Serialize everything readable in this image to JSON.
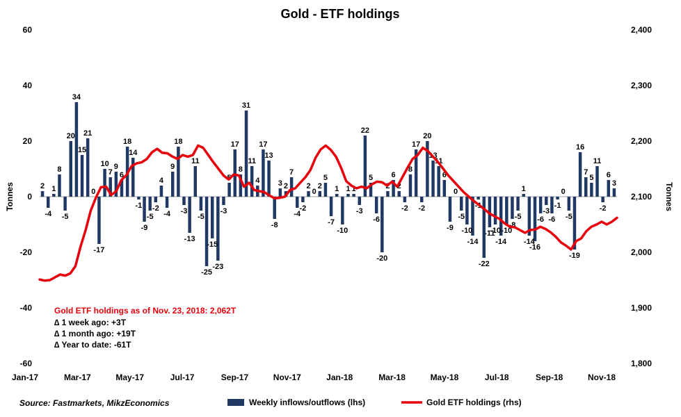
{
  "chart_data": {
    "type": "bar+line",
    "title": "Gold - ETF holdings",
    "ylabel_left": "Tonnes",
    "ylabel_right": "Tonnes",
    "ylim_left": [
      -60,
      60
    ],
    "ylim_right": [
      1800,
      2400
    ],
    "yticks_left": [
      "60",
      "40",
      "20",
      "0",
      "-20",
      "-40",
      "-60"
    ],
    "yticks_right": [
      "2,400",
      "2,300",
      "2,200",
      "2,100",
      "2,000",
      "1,900",
      "1,800"
    ],
    "xticks": [
      "Jan-17",
      "Mar-17",
      "May-17",
      "Jul-17",
      "Sep-17",
      "Nov-17",
      "Jan-18",
      "Mar-18",
      "May-18",
      "Jul-18",
      "Sep-18",
      "Nov-18"
    ],
    "series": [
      {
        "name": "Weekly inflows/outflows (lhs)",
        "type": "bar",
        "axis": "left",
        "color": "#1f3864",
        "values": [
          2,
          -4,
          1,
          8,
          -5,
          20,
          34,
          15,
          21,
          0,
          -17,
          10,
          7,
          9,
          6,
          18,
          14,
          -1,
          -9,
          -5,
          -2,
          4,
          -4,
          9,
          18,
          -3,
          -13,
          11,
          -5,
          -25,
          -15,
          -23,
          -3,
          5,
          17,
          8,
          31,
          11,
          4,
          17,
          13,
          -8,
          3,
          2,
          7,
          -4,
          -2,
          2,
          0,
          2,
          5,
          -7,
          1,
          -10,
          1,
          1,
          -3,
          22,
          5,
          -6,
          -20,
          2,
          6,
          2,
          -2,
          8,
          17,
          -2,
          20,
          13,
          11,
          6,
          -9,
          0,
          -5,
          -10,
          -14,
          -1,
          -22,
          -11,
          -10,
          -14,
          -10,
          -8,
          -5,
          1,
          -14,
          -16,
          -6,
          -3,
          -6,
          -1,
          0,
          -5,
          -19,
          16,
          7,
          5,
          11,
          -2,
          6,
          3
        ]
      },
      {
        "name": "Gold ETF holdings (rhs)",
        "type": "line",
        "axis": "right",
        "color": "#e8000b",
        "values": [
          1951,
          1949,
          1950,
          1955,
          1960,
          1958,
          1962,
          1975,
          2010,
          2040,
          2075,
          2098,
          2117,
          2118,
          2103,
          2110,
          2130,
          2139,
          2155,
          2160,
          2162,
          2168,
          2180,
          2186,
          2179,
          2178,
          2172,
          2168,
          2175,
          2172,
          2175,
          2192,
          2188,
          2175,
          2162,
          2150,
          2138,
          2131,
          2140,
          2138,
          2118,
          2125,
          2112,
          2110,
          2108,
          2102,
          2097,
          2098,
          2100,
          2112,
          2115,
          2125,
          2135,
          2148,
          2170,
          2185,
          2192,
          2184,
          2172,
          2152,
          2128,
          2120,
          2115,
          2118,
          2115,
          2122,
          2127,
          2126,
          2120,
          2127,
          2118,
          2135,
          2152,
          2168,
          2175,
          2188,
          2182,
          2172,
          2162,
          2150,
          2138,
          2128,
          2118,
          2108,
          2100,
          2092,
          2085,
          2078,
          2070,
          2065,
          2060,
          2052,
          2046,
          2045,
          2040,
          2035,
          2040,
          2041,
          2046,
          2042,
          2036,
          2028,
          2018,
          2012,
          2005,
          2020,
          2025,
          2038,
          2046,
          2050,
          2055,
          2050,
          2055,
          2062
        ],
        "note": "line sampled evenly across the x range"
      }
    ],
    "annotations": {
      "headline": "Gold ETF holdings as of Nov. 23, 2018: 2,062T",
      "lines": [
        "∆ 1 week ago: +3T",
        "∆ 1 month ago: +19T",
        "∆ Year to date: -61T"
      ]
    },
    "source": "Source: Fastmarkets, MikzEconomics",
    "legend_position": "bottom"
  }
}
